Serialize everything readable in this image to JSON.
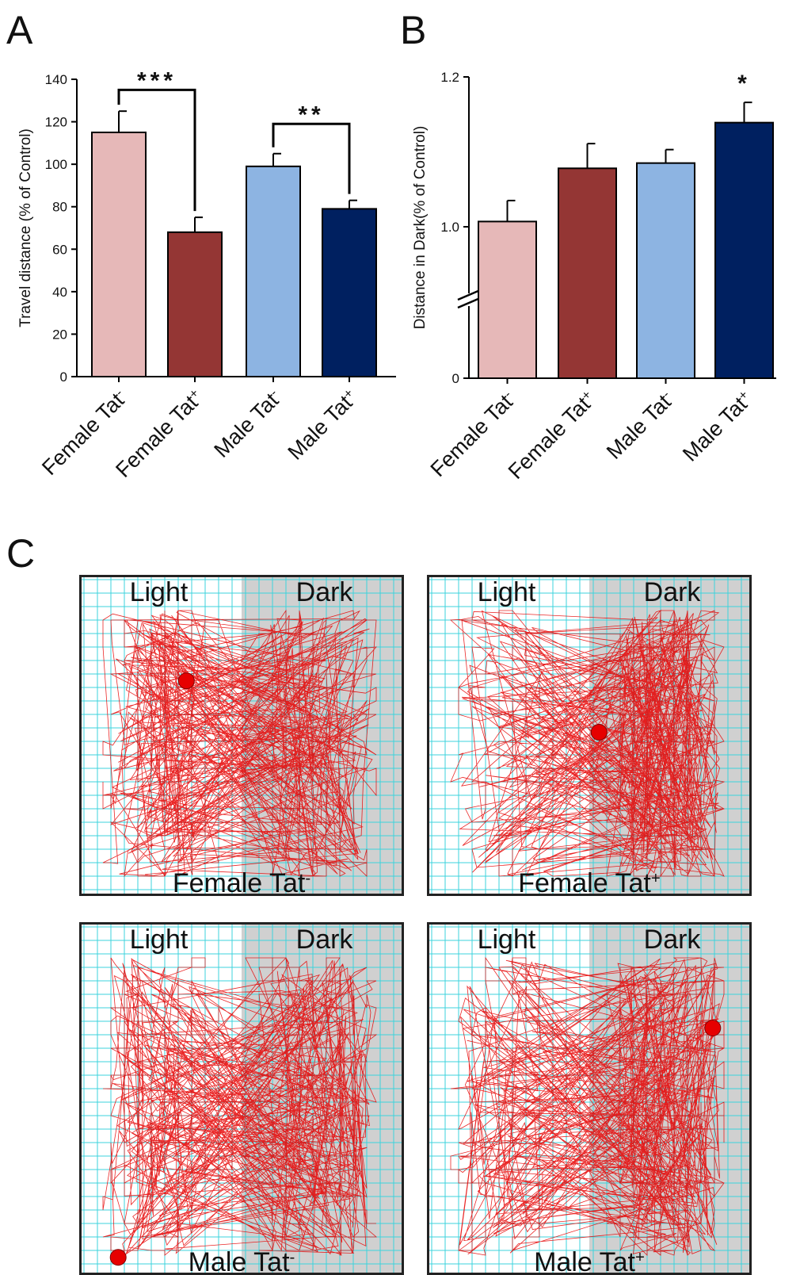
{
  "chart_data": [
    {
      "panel": "A",
      "type": "bar",
      "categories": [
        {
          "base": "Female Tat",
          "sup": "-"
        },
        {
          "base": "Female Tat",
          "sup": "+"
        },
        {
          "base": "Male Tat",
          "sup": "-"
        },
        {
          "base": "Male Tat",
          "sup": "+"
        }
      ],
      "values": [
        115,
        68,
        99,
        79
      ],
      "errors": [
        10,
        7,
        6,
        4
      ],
      "colors": [
        "#e6b8b8",
        "#943634",
        "#8db4e2",
        "#002060"
      ],
      "ylabel": "Travel distance (% of Control)",
      "ylim": [
        0,
        140
      ],
      "yticks": [
        0,
        20,
        40,
        60,
        80,
        100,
        120,
        140
      ],
      "significance": [
        {
          "from": 0,
          "to": 1,
          "label": "***",
          "y": 135
        },
        {
          "from": 2,
          "to": 3,
          "label": "**",
          "y": 119
        }
      ]
    },
    {
      "panel": "B",
      "type": "bar",
      "categories": [
        {
          "base": "Female Tat",
          "sup": "-"
        },
        {
          "base": "Female Tat",
          "sup": "+"
        },
        {
          "base": "Male Tat",
          "sup": "-"
        },
        {
          "base": "Male Tat",
          "sup": "+"
        }
      ],
      "values": [
        1.007,
        1.078,
        1.085,
        1.139
      ],
      "errors": [
        0.028,
        0.033,
        0.018,
        0.027
      ],
      "colors": [
        "#e6b8b8",
        "#943634",
        "#8db4e2",
        "#002060"
      ],
      "ylabel": "Distance in Dark(% of Control)",
      "ylim_upper": [
        0.9,
        1.2
      ],
      "yticks": [
        {
          "value": 0,
          "label": "0"
        },
        {
          "value": 1.0,
          "label": "1.0"
        },
        {
          "value": 1.2,
          "label": "1.2"
        }
      ],
      "axis_break": true,
      "significance": [
        {
          "bar": 3,
          "label": "*"
        }
      ]
    }
  ],
  "panel_c": {
    "label": "C",
    "zones": {
      "light": "Light",
      "dark": "Dark"
    },
    "colors": {
      "grid": "#3cd3dc",
      "dark_zone": "#d0d0d0",
      "track": "#e60000",
      "marker": "#e60000"
    },
    "arenas": [
      {
        "name": {
          "base": "Female Tat",
          "sup": "-"
        },
        "marker": [
          0.33,
          0.33
        ]
      },
      {
        "name": {
          "base": "Female Tat",
          "sup": "+"
        },
        "marker": [
          0.53,
          0.49
        ]
      },
      {
        "name": {
          "base": "Male Tat",
          "sup": "-"
        },
        "marker": [
          0.12,
          0.95
        ]
      },
      {
        "name": {
          "base": "Male Tat",
          "sup": "+"
        },
        "marker": [
          0.88,
          0.3
        ]
      }
    ]
  }
}
